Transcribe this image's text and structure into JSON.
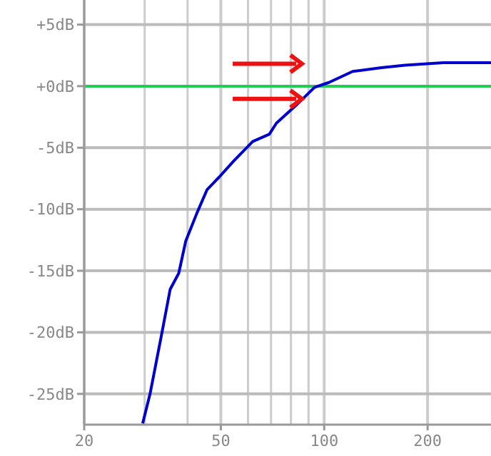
{
  "chart_data": {
    "type": "line",
    "x": [
      29.6,
      31.1,
      33.7,
      35.6,
      37.7,
      39.5,
      42.6,
      45.6,
      49.4,
      54.4,
      61.9,
      69.2,
      72.6,
      82.5,
      93.7,
      103.2,
      121,
      146.6,
      172,
      222,
      245,
      306
    ],
    "series": [
      {
        "color": "#0000cc",
        "values": [
          -27.4,
          -25,
          -20,
          -16.5,
          -15.2,
          -12.6,
          -10.3,
          -8.4,
          -7.4,
          -6.1,
          -4.5,
          -3.9,
          -3,
          -1.6,
          -0.1,
          0.3,
          1.2,
          1.5,
          1.7,
          1.9,
          1.9,
          1.9
        ]
      }
    ],
    "log": "x",
    "xlim": [
      20,
      306
    ],
    "ylim": [
      -27.5,
      7
    ],
    "xticks": [
      20,
      {
        "value": 30,
        "label": null
      },
      {
        "value": 40,
        "label": null
      },
      50,
      {
        "value": 60,
        "label": null
      },
      {
        "value": 70,
        "label": null
      },
      {
        "value": 80,
        "label": null
      },
      {
        "value": 90,
        "label": null
      },
      100,
      200
    ],
    "yticks": [
      {
        "value": -25,
        "label": "-25dB"
      },
      {
        "value": -20,
        "label": "-20dB"
      },
      {
        "value": -15,
        "label": "-15dB"
      },
      {
        "value": -10,
        "label": "-10dB"
      },
      {
        "value": -5,
        "label": "-5dB"
      },
      {
        "value": 0,
        "label": "+0dB"
      },
      {
        "value": 5,
        "label": "+5dB"
      }
    ],
    "grid": true,
    "ref_lines": [
      {
        "axis": "y",
        "value": 0,
        "color": "#22cc55"
      }
    ]
  }
}
